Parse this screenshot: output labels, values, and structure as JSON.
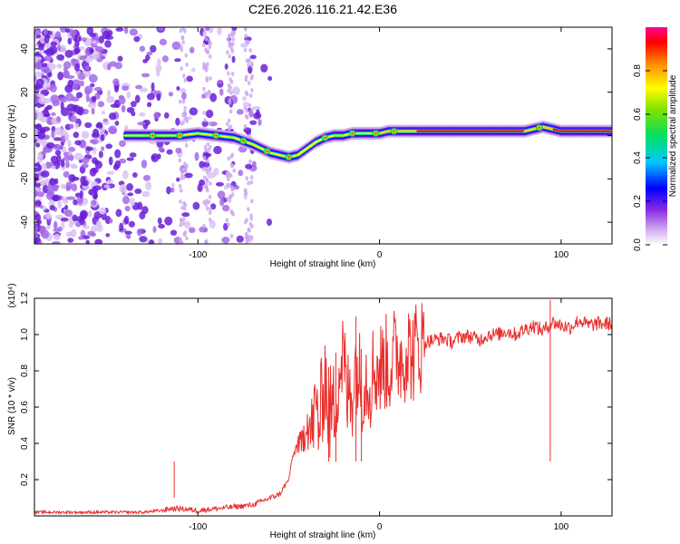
{
  "title": "C2E6.2026.116.21.42.E36",
  "colors": {
    "snr_line": "#e8302e",
    "axis": "#000000"
  },
  "chart_data": [
    {
      "type": "heatmap",
      "xlabel": "Height of straight line (km)",
      "ylabel": "Frequency (Hz)",
      "xlim": [
        -190,
        128
      ],
      "ylim": [
        -50,
        50
      ],
      "xticks": [
        -100,
        0,
        100
      ],
      "yticks": [
        -40,
        -20,
        0,
        20,
        40
      ],
      "ridge": {
        "x": [
          -140,
          -130,
          -120,
          -110,
          -100,
          -90,
          -80,
          -70,
          -60,
          -50,
          -45,
          -40,
          -35,
          -30,
          -25,
          -20,
          -15,
          -10,
          -5,
          0,
          5,
          10,
          20,
          30,
          40,
          50,
          60,
          70,
          80,
          85,
          90,
          95,
          100,
          110,
          120,
          128
        ],
        "freq": [
          0,
          0,
          0,
          0,
          1,
          0,
          -1,
          -4,
          -8,
          -10,
          -9,
          -6,
          -3,
          -1,
          0,
          0,
          1,
          1,
          1,
          1,
          2,
          2,
          2,
          2,
          2,
          2,
          2,
          2,
          2,
          3,
          4,
          3,
          2,
          2,
          2,
          2
        ]
      },
      "colorbar": {
        "label": "Normalized spectral amplitude",
        "range": [
          0,
          1
        ],
        "ticks": [
          "0.0",
          "0.2",
          "0.4",
          "0.6",
          "0.8"
        ]
      }
    },
    {
      "type": "line",
      "xlabel": "Height of straight line (km)",
      "ylabel": "SNR (10 * v/v)",
      "scale_label": "(x10⁴)",
      "xlim": [
        -190,
        128
      ],
      "ylim": [
        0,
        1.2
      ],
      "xticks": [
        -100,
        0,
        100
      ],
      "yticks": [
        0.2,
        0.4,
        0.6,
        0.8,
        1.0,
        1.2
      ],
      "series": [
        {
          "name": "SNR",
          "x": [
            -190,
            -160,
            -130,
            -120,
            -115,
            -110,
            -100,
            -90,
            -80,
            -70,
            -65,
            -60,
            -55,
            -50,
            -48,
            -45,
            -43,
            -40,
            -38,
            -35,
            -33,
            -30,
            -28,
            -25,
            -23,
            -20,
            -18,
            -15,
            -13,
            -10,
            -8,
            -5,
            -3,
            0,
            3,
            5,
            8,
            10,
            13,
            15,
            18,
            20,
            25,
            30,
            35,
            40,
            45,
            50,
            55,
            60,
            65,
            70,
            75,
            80,
            85,
            90,
            95,
            100,
            105,
            110,
            115,
            120,
            128
          ],
          "y": [
            0.02,
            0.02,
            0.02,
            0.03,
            0.04,
            0.04,
            0.03,
            0.04,
            0.05,
            0.06,
            0.08,
            0.1,
            0.12,
            0.2,
            0.32,
            0.4,
            0.38,
            0.55,
            0.45,
            0.6,
            0.5,
            0.8,
            0.55,
            0.6,
            0.75,
            0.9,
            0.65,
            0.7,
            0.85,
            0.72,
            0.78,
            0.75,
            0.82,
            0.8,
            0.85,
            0.82,
            0.88,
            0.9,
            0.86,
            0.94,
            0.88,
            0.92,
            0.96,
            0.97,
            0.98,
            0.96,
            0.99,
            0.99,
            0.97,
            1.0,
            1.0,
            1.02,
            1.0,
            1.03,
            1.05,
            1.02,
            1.07,
            1.05,
            1.04,
            1.08,
            1.05,
            1.06,
            1.06
          ]
        }
      ]
    }
  ]
}
